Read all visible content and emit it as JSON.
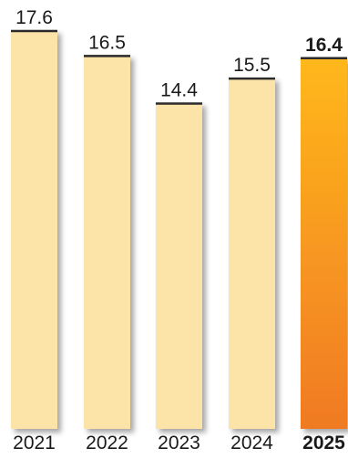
{
  "chart_data": {
    "type": "bar",
    "categories": [
      "2021",
      "2022",
      "2023",
      "2024",
      "2025"
    ],
    "values": [
      17.6,
      16.5,
      14.4,
      15.5,
      16.4
    ],
    "value_labels": [
      "17.6",
      "16.5",
      "14.4",
      "15.5",
      "16.4"
    ],
    "highlight_index": 4,
    "ylim": [
      0,
      17.6
    ],
    "grid": false,
    "legend": "none",
    "title": "",
    "xlabel": "",
    "ylabel": ""
  },
  "colors": {
    "bar": "#FCE3A8",
    "bar_top": "#2b2b2b",
    "highlight_top": "#FFB81C",
    "highlight_bottom": "#F07A24",
    "text": "#1a1a1a"
  }
}
